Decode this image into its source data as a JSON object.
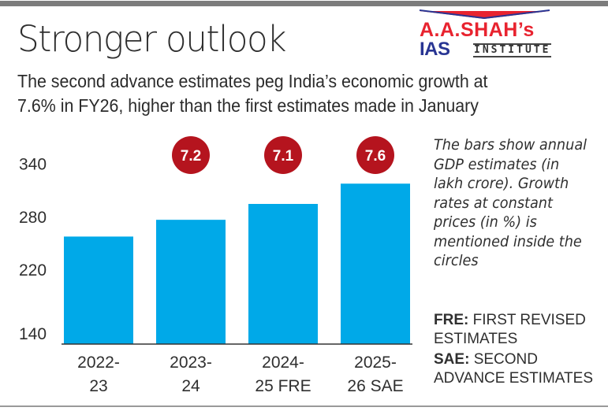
{
  "header": {
    "title": "Stronger outlook",
    "subtitle_lines": [
      "The second advance estimates peg India’s economic growth at",
      "7.6% in FY26, higher than the first estimates made in January"
    ]
  },
  "logo": {
    "line1": "A.A.SHAH’s",
    "ias": "IAS",
    "institute": "INSTITUTE",
    "colors": {
      "red": "#e8232f",
      "blue": "#283593"
    }
  },
  "note": "The bars show annual GDP estimates (in lakh crore). Growth rates at constant prices (in %) is mentioned inside the circles",
  "legend": [
    {
      "abbr": "FRE:",
      "text": "FIRST REVISED ESTIMATES"
    },
    {
      "abbr": "SAE:",
      "text": "SECOND ADVANCE ESTIMATES"
    }
  ],
  "colors": {
    "bar": "#00a9e8",
    "badge": "#b5141e",
    "axis": "#333333"
  },
  "chart_data": {
    "type": "bar",
    "title": "Stronger outlook",
    "xlabel": "",
    "ylabel": "GDP (lakh crore)",
    "categories": [
      [
        "2022-",
        "23"
      ],
      [
        "2023-",
        "24"
      ],
      [
        "2024-",
        "25 FRE"
      ],
      [
        "2025-",
        "26 SAE"
      ]
    ],
    "values": [
      258,
      277,
      295,
      318
    ],
    "growth_rates": [
      null,
      7.2,
      7.1,
      7.6
    ],
    "growth_labels": [
      "",
      "7.2",
      "7.1",
      "7.6"
    ],
    "yticks": [
      140,
      220,
      280,
      340
    ],
    "ytick_labels": [
      "140",
      "220",
      "280",
      "340"
    ],
    "ylim": [
      140,
      340
    ],
    "grid": false,
    "legend": "none"
  }
}
